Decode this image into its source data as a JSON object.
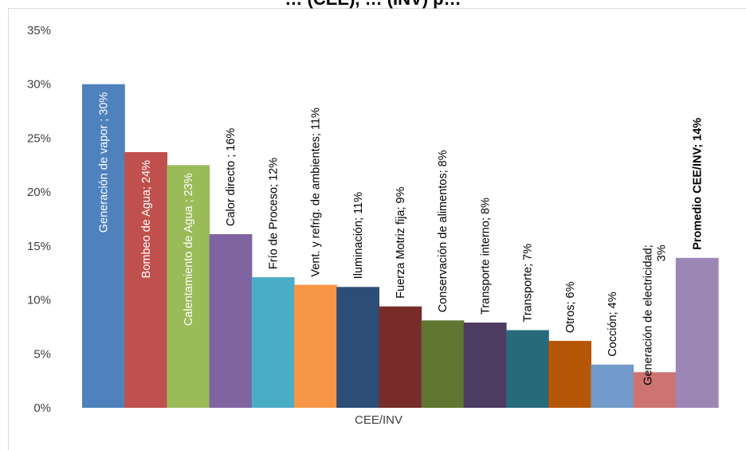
{
  "chart_data": {
    "type": "bar",
    "title": "… (CEE), … (INV) p…",
    "xlabel": "CEE/INV",
    "ylabel": "",
    "ylim": [
      0,
      0.35
    ],
    "yticks": [
      "0%",
      "5%",
      "10%",
      "15%",
      "20%",
      "25%",
      "30%",
      "35%"
    ],
    "grid": false,
    "legend": "none",
    "series": [
      {
        "label": "Generación de vapor ; 30%",
        "value": 0.3,
        "color": "#4F81BD",
        "label_color": "#ffffff",
        "label_inside": true
      },
      {
        "label": "Bombeo de Agua; 24%",
        "value": 0.237,
        "color": "#C0504D",
        "label_color": "#ffffff",
        "label_inside": true
      },
      {
        "label": "Calentamiento de Agua ; 23%",
        "value": 0.225,
        "color": "#9BBB59",
        "label_color": "#ffffff",
        "label_inside": true
      },
      {
        "label": "Calor directo ; 16%",
        "value": 0.161,
        "color": "#8064A2",
        "label_color": "#000000",
        "label_inside": false
      },
      {
        "label": "Frío de Proceso; 12%",
        "value": 0.121,
        "color": "#4BACC6",
        "label_color": "#000000",
        "label_inside": false
      },
      {
        "label": "Vent. y refrig. de ambientes; 11%",
        "value": 0.114,
        "color": "#F79646",
        "label_color": "#000000",
        "label_inside": false
      },
      {
        "label": "Iluminación; 11%",
        "value": 0.112,
        "color": "#2C4D75",
        "label_color": "#000000",
        "label_inside": false
      },
      {
        "label": "Fuerza Motriz fija; 9%",
        "value": 0.094,
        "color": "#772C2A",
        "label_color": "#000000",
        "label_inside": false
      },
      {
        "label": "Conservación de alimentos; 8%",
        "value": 0.081,
        "color": "#5F7530",
        "label_color": "#000000",
        "label_inside": false
      },
      {
        "label": "Transporte interno; 8%",
        "value": 0.079,
        "color": "#4D3B62",
        "label_color": "#000000",
        "label_inside": false
      },
      {
        "label": "Transporte; 7%",
        "value": 0.072,
        "color": "#276A7C",
        "label_color": "#000000",
        "label_inside": false
      },
      {
        "label": "Otros; 6%",
        "value": 0.062,
        "color": "#B65708",
        "label_color": "#000000",
        "label_inside": false
      },
      {
        "label": "Cocción; 4%",
        "value": 0.04,
        "color": "#729ACA",
        "label_color": "#000000",
        "label_inside": false
      },
      {
        "label": [
          "Generación de electricidad;",
          "3%"
        ],
        "value": 0.033,
        "color": "#CD7371",
        "label_color": "#000000",
        "label_inside": false
      },
      {
        "label": "Promedio CEE/INV; 14%",
        "value": 0.139,
        "color": "#9B86B6",
        "label_color": "#000000",
        "label_inside": false,
        "bold": true
      }
    ]
  }
}
